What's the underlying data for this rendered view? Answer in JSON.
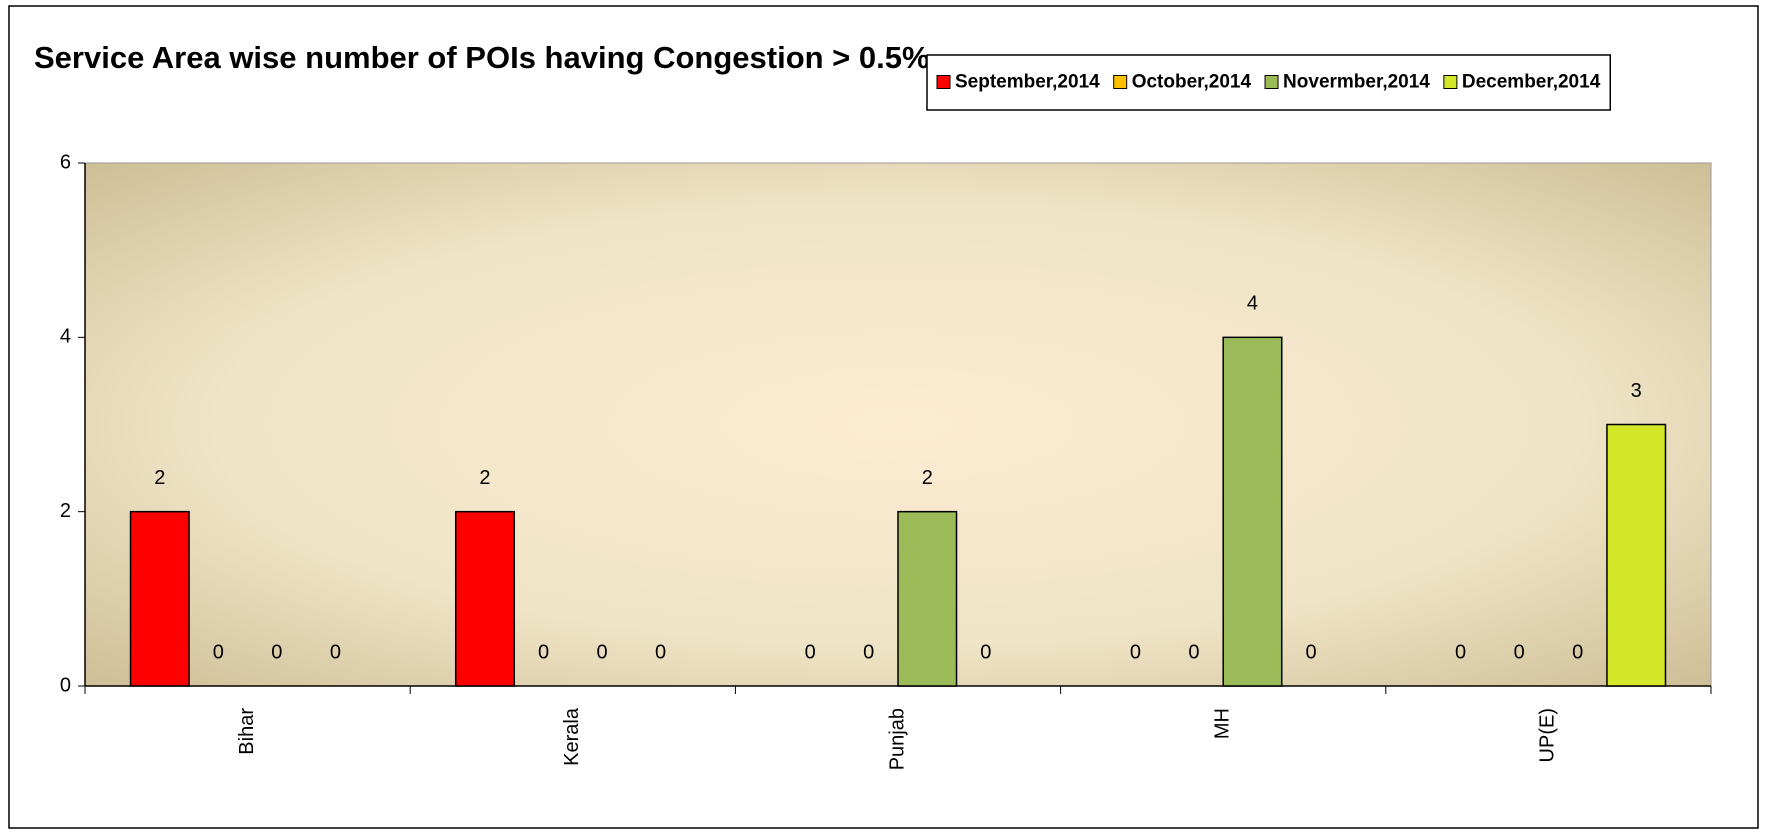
{
  "chart_data": {
    "type": "bar",
    "title": "Service Area wise  number of POIs having Congestion > 0.5%",
    "categories": [
      "Bihar",
      "Kerala",
      "Punjab",
      "MH",
      "UP(E)"
    ],
    "series": [
      {
        "name": "September,2014",
        "color": "#ff0000",
        "values": [
          2,
          2,
          0,
          0,
          0
        ]
      },
      {
        "name": "October,2014",
        "color": "#ffc000",
        "values": [
          0,
          0,
          0,
          0,
          0
        ]
      },
      {
        "name": "Novermber,2014",
        "color": "#9bbb59",
        "values": [
          0,
          0,
          2,
          4,
          0
        ]
      },
      {
        "name": "December,2014",
        "color": "#d4e82a",
        "values": [
          0,
          0,
          0,
          0,
          3
        ]
      }
    ],
    "ylim": [
      0,
      6
    ],
    "yticks": [
      0,
      2,
      4,
      6
    ],
    "grid": false,
    "legend": "top-right"
  }
}
